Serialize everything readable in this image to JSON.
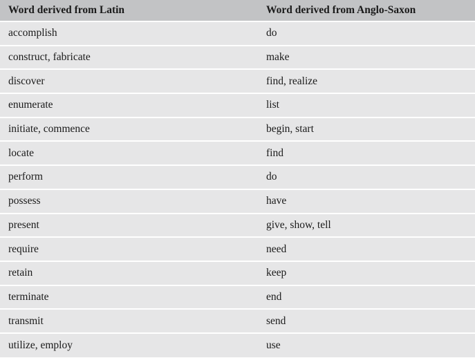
{
  "table": {
    "headers": [
      "Word derived from Latin",
      "Word derived from Anglo-Saxon"
    ],
    "rows": [
      [
        "accomplish",
        "do"
      ],
      [
        "construct, fabricate",
        "make"
      ],
      [
        "discover",
        "find, realize"
      ],
      [
        "enumerate",
        "list"
      ],
      [
        "initiate, commence",
        "begin, start"
      ],
      [
        "locate",
        "find"
      ],
      [
        "perform",
        "do"
      ],
      [
        "possess",
        "have"
      ],
      [
        "present",
        "give, show, tell"
      ],
      [
        "require",
        "need"
      ],
      [
        "retain",
        "keep"
      ],
      [
        "terminate",
        "end"
      ],
      [
        "transmit",
        "send"
      ],
      [
        "utilize, employ",
        "use"
      ]
    ]
  }
}
